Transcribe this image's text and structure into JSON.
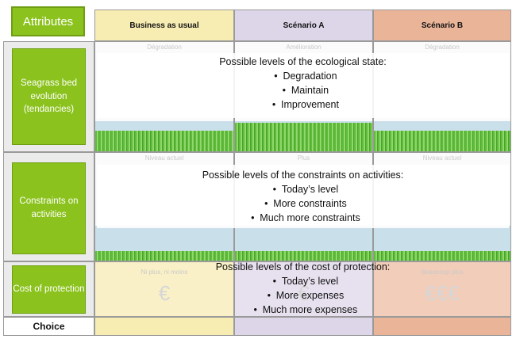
{
  "header": {
    "attributes_label": "Attributes",
    "columns": [
      "Business as usual",
      "Scénario A",
      "Scénario B"
    ]
  },
  "rows": {
    "seagrass": {
      "label": "Seagrass bed evolution (tendancies)",
      "faint_labels": [
        "Dégradation",
        "Amélioration",
        "Dégradation"
      ],
      "title": "Possible levels of the ecological state:",
      "levels": [
        "Degradation",
        "Maintain",
        "Improvement"
      ]
    },
    "constraints": {
      "label": "Constraints on activities",
      "faint_labels": [
        "Niveau actuel",
        "Plus",
        "Niveau actuel"
      ],
      "title": "Possible levels of the constraints on activities:",
      "levels": [
        "Today’s level",
        "More constraints",
        "Much more constraints"
      ]
    },
    "cost": {
      "label": "Cost of protection",
      "faint_labels": [
        "Ni plus, ni moins",
        "",
        "Beaucoup plus"
      ],
      "symbols": [
        "€",
        "€",
        "€€€"
      ],
      "title": "Possible levels of the cost of protection:",
      "levels": [
        "Today’s level",
        "More expenses",
        "Much more expenses"
      ]
    },
    "choice": {
      "label": "Choice"
    }
  },
  "colors": {
    "attribute_green": "#8bc21d",
    "business_as_usual": "#f7ecb2",
    "scenario_a": "#ddd5e8",
    "scenario_b": "#eab499"
  }
}
